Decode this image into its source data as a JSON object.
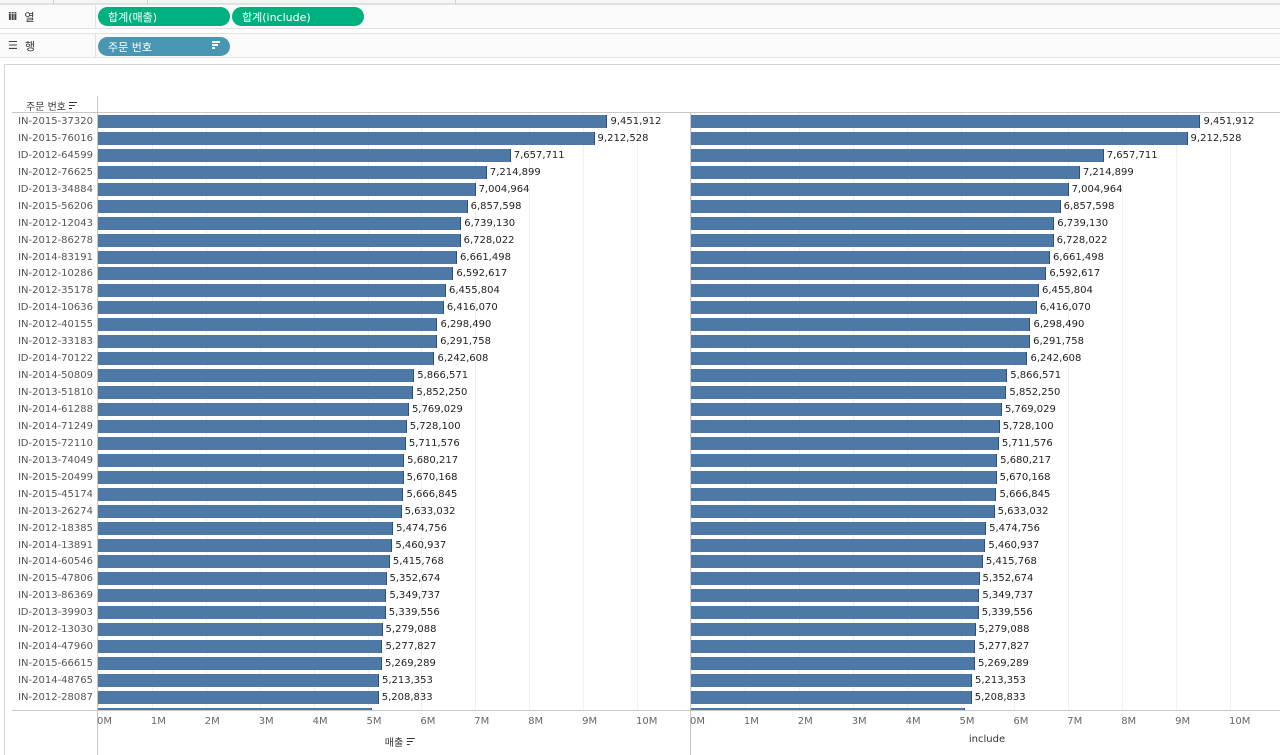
{
  "shelves": {
    "columns": {
      "label": "열",
      "icon": "columns-icon",
      "pills": [
        "합계(매출)",
        "합계(include)"
      ]
    },
    "rows": {
      "label": "행",
      "icon": "rows-icon",
      "pills": [
        "주문 번호"
      ]
    }
  },
  "row_header": {
    "title": "주문 번호"
  },
  "colors": {
    "bar": "#4e79a7",
    "pill_measure": "#00b180",
    "pill_dimension": "#4996b2"
  },
  "chart_data": [
    {
      "type": "bar",
      "orientation": "horizontal",
      "title": "",
      "xlabel": "매출",
      "ylabel": "주문 번호",
      "xlim": [
        0,
        10500000
      ],
      "x_ticks": [
        "0M",
        "1M",
        "2M",
        "3M",
        "4M",
        "5M",
        "6M",
        "7M",
        "8M",
        "9M",
        "10M"
      ],
      "grid": true,
      "categories": [
        "IN-2015-37320",
        "IN-2015-76016",
        "ID-2012-64599",
        "IN-2012-76625",
        "ID-2013-34884",
        "IN-2015-56206",
        "IN-2012-12043",
        "IN-2012-86278",
        "IN-2014-83191",
        "IN-2012-10286",
        "IN-2012-35178",
        "ID-2014-10636",
        "IN-2012-40155",
        "IN-2012-33183",
        "ID-2014-70122",
        "IN-2014-50809",
        "IN-2013-51810",
        "IN-2014-61288",
        "IN-2014-71249",
        "ID-2015-72110",
        "IN-2013-74049",
        "IN-2015-20499",
        "IN-2015-45174",
        "IN-2013-26274",
        "IN-2012-18385",
        "IN-2014-13891",
        "IN-2014-60546",
        "IN-2015-47806",
        "IN-2013-86369",
        "ID-2013-39903",
        "IN-2012-13030",
        "IN-2014-47960",
        "IN-2015-66615",
        "IN-2014-48765",
        "IN-2012-28087"
      ],
      "values": [
        9451912,
        9212528,
        7657711,
        7214899,
        7004964,
        6857598,
        6739130,
        6728022,
        6661498,
        6592617,
        6455804,
        6416070,
        6298490,
        6291758,
        6242608,
        5866571,
        5852250,
        5769029,
        5728100,
        5711576,
        5680217,
        5670168,
        5666845,
        5633032,
        5474756,
        5460937,
        5415768,
        5352674,
        5349737,
        5339556,
        5279088,
        5277827,
        5269289,
        5213353,
        5208833
      ],
      "value_labels": [
        "9,451,912",
        "9,212,528",
        "7,657,711",
        "7,214,899",
        "7,004,964",
        "6,857,598",
        "6,739,130",
        "6,728,022",
        "6,661,498",
        "6,592,617",
        "6,455,804",
        "6,416,070",
        "6,298,490",
        "6,291,758",
        "6,242,608",
        "5,866,571",
        "5,852,250",
        "5,769,029",
        "5,728,100",
        "5,711,576",
        "5,680,217",
        "5,670,168",
        "5,666,845",
        "5,633,032",
        "5,474,756",
        "5,460,937",
        "5,415,768",
        "5,352,674",
        "5,349,737",
        "5,339,556",
        "5,279,088",
        "5,277,827",
        "5,269,289",
        "5,213,353",
        "5,208,833"
      ]
    },
    {
      "type": "bar",
      "orientation": "horizontal",
      "title": "",
      "xlabel": "include",
      "ylabel": "주문 번호",
      "xlim": [
        0,
        10500000
      ],
      "x_ticks": [
        "0M",
        "1M",
        "2M",
        "3M",
        "4M",
        "5M",
        "6M",
        "7M",
        "8M",
        "9M",
        "10M"
      ],
      "grid": true,
      "categories": [
        "IN-2015-37320",
        "IN-2015-76016",
        "ID-2012-64599",
        "IN-2012-76625",
        "ID-2013-34884",
        "IN-2015-56206",
        "IN-2012-12043",
        "IN-2012-86278",
        "IN-2014-83191",
        "IN-2012-10286",
        "IN-2012-35178",
        "ID-2014-10636",
        "IN-2012-40155",
        "IN-2012-33183",
        "ID-2014-70122",
        "IN-2014-50809",
        "IN-2013-51810",
        "IN-2014-61288",
        "IN-2014-71249",
        "ID-2015-72110",
        "IN-2013-74049",
        "IN-2015-20499",
        "IN-2015-45174",
        "IN-2013-26274",
        "IN-2012-18385",
        "IN-2014-13891",
        "IN-2014-60546",
        "IN-2015-47806",
        "IN-2013-86369",
        "ID-2013-39903",
        "IN-2012-13030",
        "IN-2014-47960",
        "IN-2015-66615",
        "IN-2014-48765",
        "IN-2012-28087"
      ],
      "values": [
        9451912,
        9212528,
        7657711,
        7214899,
        7004964,
        6857598,
        6739130,
        6728022,
        6661498,
        6592617,
        6455804,
        6416070,
        6298490,
        6291758,
        6242608,
        5866571,
        5852250,
        5769029,
        5728100,
        5711576,
        5680217,
        5670168,
        5666845,
        5633032,
        5474756,
        5460937,
        5415768,
        5352674,
        5349737,
        5339556,
        5279088,
        5277827,
        5269289,
        5213353,
        5208833
      ],
      "value_labels": [
        "9,451,912",
        "9,212,528",
        "7,657,711",
        "7,214,899",
        "7,004,964",
        "6,857,598",
        "6,739,130",
        "6,728,022",
        "6,661,498",
        "6,592,617",
        "6,455,804",
        "6,416,070",
        "6,298,490",
        "6,291,758",
        "6,242,608",
        "5,866,571",
        "5,852,250",
        "5,769,029",
        "5,728,100",
        "5,711,576",
        "5,680,217",
        "5,670,168",
        "5,666,845",
        "5,633,032",
        "5,474,756",
        "5,460,937",
        "5,415,768",
        "5,352,674",
        "5,349,737",
        "5,339,556",
        "5,279,088",
        "5,277,827",
        "5,269,289",
        "5,213,353",
        "5,208,833"
      ]
    }
  ]
}
